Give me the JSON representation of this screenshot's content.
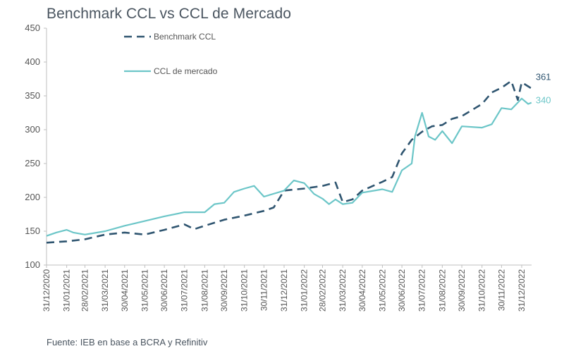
{
  "title": "Benchmark CCL vs CCL de Mercado",
  "source": "Fuente: IEB en base a BCRA y Refinitiv",
  "chart_data": {
    "type": "line",
    "title": "Benchmark CCL vs CCL de Mercado",
    "xlabel": "",
    "ylabel": "",
    "ylim": [
      100,
      450
    ],
    "yticks": [
      100,
      150,
      200,
      250,
      300,
      350,
      400,
      450
    ],
    "x_tick_labels": [
      "31/12/2020",
      "31/01/2021",
      "28/02/2021",
      "31/03/2021",
      "30/04/2021",
      "31/05/2021",
      "30/06/2021",
      "31/07/2021",
      "31/08/2021",
      "30/09/2021",
      "31/10/2021",
      "30/11/2021",
      "31/12/2021",
      "31/01/2022",
      "28/02/2022",
      "31/03/2022",
      "30/04/2022",
      "31/05/2022",
      "30/06/2022",
      "31/07/2022",
      "31/08/2022",
      "30/09/2022",
      "31/10/2022",
      "30/11/2022",
      "31/12/2022"
    ],
    "grid": false,
    "legend": "top-left",
    "colors": {
      "benchmark": "#2f5570",
      "mercado": "#6cc6c8",
      "axis": "#bfbfbf",
      "text": "#555555"
    },
    "series": [
      {
        "name": "Benchmark CCL",
        "style": "dashed",
        "end_label": "361",
        "points": [
          [
            "31/12/2020",
            133
          ],
          [
            "31/01/2021",
            135
          ],
          [
            "28/02/2021",
            138
          ],
          [
            "31/03/2021",
            145
          ],
          [
            "30/04/2021",
            148
          ],
          [
            "31/05/2021",
            145
          ],
          [
            "30/06/2021",
            152
          ],
          [
            "31/07/2021",
            160
          ],
          [
            "15/08/2021",
            153
          ],
          [
            "31/08/2021",
            158
          ],
          [
            "30/09/2021",
            167
          ],
          [
            "31/10/2021",
            173
          ],
          [
            "30/11/2021",
            180
          ],
          [
            "15/12/2021",
            185
          ],
          [
            "31/12/2021",
            210
          ],
          [
            "31/01/2022",
            213
          ],
          [
            "28/02/2022",
            217
          ],
          [
            "20/03/2022",
            222
          ],
          [
            "31/03/2022",
            193
          ],
          [
            "15/04/2022",
            197
          ],
          [
            "30/04/2022",
            210
          ],
          [
            "31/05/2022",
            223
          ],
          [
            "15/06/2022",
            230
          ],
          [
            "30/06/2022",
            265
          ],
          [
            "15/07/2022",
            285
          ],
          [
            "31/07/2022",
            297
          ],
          [
            "15/08/2022",
            305
          ],
          [
            "31/08/2022",
            307
          ],
          [
            "15/09/2022",
            316
          ],
          [
            "30/09/2022",
            320
          ],
          [
            "31/10/2022",
            338
          ],
          [
            "15/11/2022",
            355
          ],
          [
            "30/11/2022",
            362
          ],
          [
            "15/12/2022",
            372
          ],
          [
            "25/12/2022",
            344
          ],
          [
            "31/12/2022",
            370
          ],
          [
            "15/01/2023",
            361
          ]
        ]
      },
      {
        "name": "CCL de mercado",
        "style": "solid",
        "end_label": "340",
        "points": [
          [
            "31/12/2020",
            143
          ],
          [
            "15/01/2021",
            148
          ],
          [
            "31/01/2021",
            152
          ],
          [
            "10/02/2021",
            148
          ],
          [
            "28/02/2021",
            145
          ],
          [
            "31/03/2021",
            150
          ],
          [
            "30/04/2021",
            158
          ],
          [
            "31/05/2021",
            165
          ],
          [
            "30/06/2021",
            172
          ],
          [
            "31/07/2021",
            178
          ],
          [
            "31/08/2021",
            178
          ],
          [
            "15/09/2021",
            190
          ],
          [
            "30/09/2021",
            192
          ],
          [
            "15/10/2021",
            208
          ],
          [
            "31/10/2021",
            213
          ],
          [
            "15/11/2021",
            217
          ],
          [
            "30/11/2021",
            201
          ],
          [
            "31/12/2021",
            210
          ],
          [
            "15/01/2022",
            225
          ],
          [
            "31/01/2022",
            221
          ],
          [
            "15/02/2022",
            205
          ],
          [
            "28/02/2022",
            198
          ],
          [
            "10/03/2022",
            190
          ],
          [
            "20/03/2022",
            197
          ],
          [
            "31/03/2022",
            190
          ],
          [
            "15/04/2022",
            192
          ],
          [
            "30/04/2022",
            207
          ],
          [
            "31/05/2022",
            212
          ],
          [
            "15/06/2022",
            208
          ],
          [
            "30/06/2022",
            240
          ],
          [
            "15/07/2022",
            250
          ],
          [
            "20/07/2022",
            290
          ],
          [
            "31/07/2022",
            325
          ],
          [
            "10/08/2022",
            290
          ],
          [
            "20/08/2022",
            285
          ],
          [
            "31/08/2022",
            298
          ],
          [
            "15/09/2022",
            280
          ],
          [
            "30/09/2022",
            305
          ],
          [
            "31/10/2022",
            303
          ],
          [
            "15/11/2022",
            308
          ],
          [
            "30/11/2022",
            332
          ],
          [
            "15/12/2022",
            330
          ],
          [
            "31/12/2022",
            346
          ],
          [
            "10/01/2023",
            338
          ],
          [
            "15/01/2023",
            340
          ]
        ]
      }
    ]
  }
}
